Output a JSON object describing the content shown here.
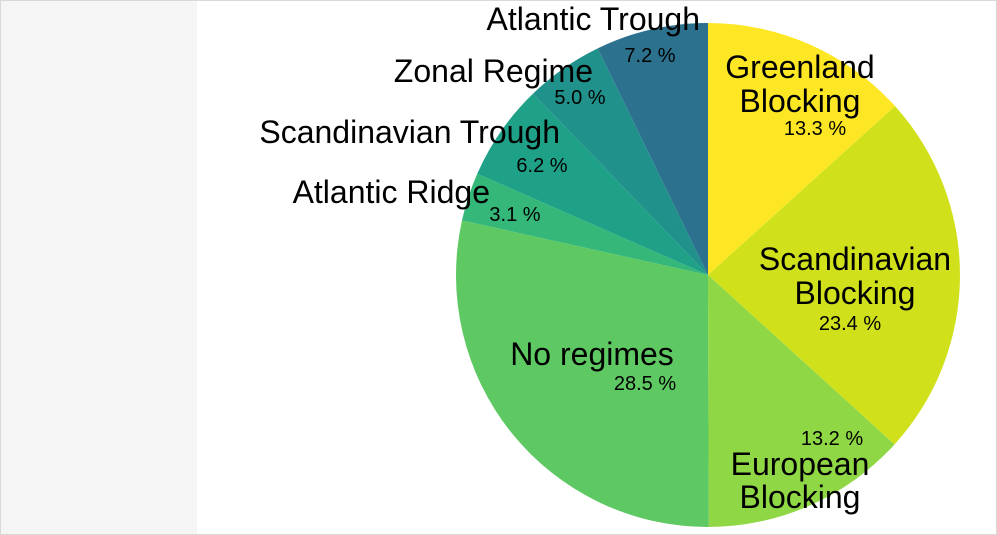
{
  "chart_data": {
    "type": "pie",
    "start_angle_deg": 0,
    "direction": "clockwise",
    "slices": [
      {
        "label": [
          "Greenland",
          "Blocking"
        ],
        "value": 13.3,
        "pct_text": "13.3 %",
        "color": "#fde725"
      },
      {
        "label": [
          "Scandinavian",
          "Blocking"
        ],
        "value": 23.4,
        "pct_text": "23.4 %",
        "color": "#d0e11c"
      },
      {
        "label": [
          "European",
          "Blocking"
        ],
        "value": 13.2,
        "pct_text": "13.2 %",
        "color": "#8fd744"
      },
      {
        "label": [
          "No regimes"
        ],
        "value": 28.5,
        "pct_text": "28.5 %",
        "color": "#5ec962"
      },
      {
        "label": [
          "Atlantic Ridge"
        ],
        "value": 3.1,
        "pct_text": "3.1 %",
        "color": "#35b779"
      },
      {
        "label": [
          "Scandinavian Trough"
        ],
        "value": 6.2,
        "pct_text": "6.2 %",
        "color": "#1fa188"
      },
      {
        "label": [
          "Zonal Regime"
        ],
        "value": 5.0,
        "pct_text": "5.0 %",
        "color": "#21918c"
      },
      {
        "label": [
          "Atlantic Trough"
        ],
        "value": 7.2,
        "pct_text": "7.2 %",
        "color": "#2c728e"
      }
    ]
  }
}
